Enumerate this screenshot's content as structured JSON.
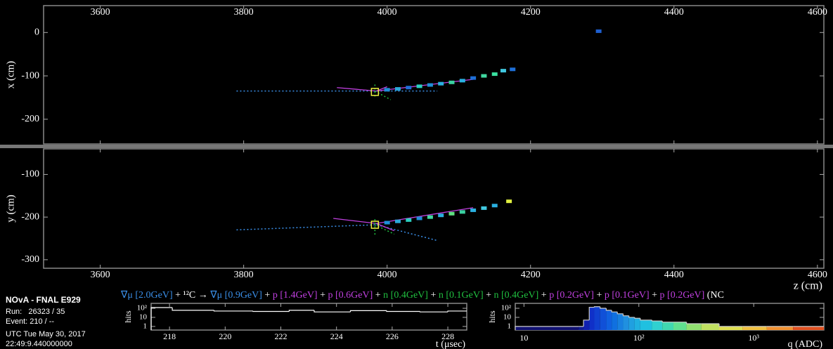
{
  "chart_data": [
    {
      "type": "scatter",
      "ylabel": "x (cm)",
      "xlim": [
        3521,
        4609
      ],
      "xticks": [
        3600,
        3800,
        4000,
        4200,
        4400,
        4600
      ],
      "ylim": [
        -257,
        62
      ],
      "yticks": [
        0,
        -100,
        -200
      ],
      "x": [
        4000,
        4015,
        4030,
        4045,
        4060,
        4075,
        4090,
        4105,
        4120,
        4135,
        4150,
        4162,
        4175,
        4295
      ],
      "values": [
        -132,
        -130,
        -127,
        -124,
        -121,
        -118,
        -115,
        -111,
        -105,
        -100,
        -96,
        -88,
        -85,
        3
      ],
      "colors": [
        "#1e8fd8",
        "#2aa8d8",
        "#1e6fd8",
        "#2ad0c0",
        "#1e8fd8",
        "#2ab0e0",
        "#3ad0a0",
        "#2ab0e0",
        "#1e6fd8",
        "#40d8a0",
        "#3ae0a0",
        "#40c8e0",
        "#1e6fd8",
        "#1e5fd0"
      ],
      "tracks": [
        {
          "color": "#3a8fe8",
          "dash": true,
          "x": [
            3790,
            4070
          ],
          "values": [
            -135,
            -135
          ]
        },
        {
          "color": "#c040e0",
          "dash": false,
          "x": [
            3930,
            3985,
            4120
          ],
          "values": [
            -127,
            -135,
            -108
          ]
        },
        {
          "color": "#c040e0",
          "dash": false,
          "x": [
            3985,
            4000
          ],
          "values": [
            -135,
            -125
          ]
        },
        {
          "color": "#20c040",
          "dash": true,
          "x": [
            3983,
            3983
          ],
          "values": [
            -120,
            -150
          ]
        },
        {
          "color": "#20c040",
          "dash": true,
          "x": [
            3983,
            4005
          ],
          "values": [
            -135,
            -155
          ]
        }
      ],
      "vertex": {
        "x": 3983,
        "y": -137,
        "color": "#f0f040"
      }
    },
    {
      "type": "scatter",
      "ylabel": "y (cm)",
      "xlabel": "z (cm)",
      "xlim": [
        3521,
        4609
      ],
      "xticks": [
        3600,
        3800,
        4000,
        4200,
        4400,
        4600
      ],
      "ylim": [
        -320,
        -40
      ],
      "yticks": [
        -100,
        -200,
        -300
      ],
      "x": [
        4000,
        4015,
        4030,
        4045,
        4060,
        4075,
        4090,
        4105,
        4120,
        4135,
        4150,
        4170
      ],
      "values": [
        -213,
        -210,
        -207,
        -203,
        -200,
        -196,
        -192,
        -188,
        -184,
        -179,
        -173,
        -163
      ],
      "colors": [
        "#1e8fd8",
        "#2aa8d8",
        "#2ad0c0",
        "#1e8fd8",
        "#40d8a0",
        "#2ab0e0",
        "#60e080",
        "#3ad0a0",
        "#2ab0e0",
        "#40c8e0",
        "#2ab0e0",
        "#e0f040"
      ],
      "tracks": [
        {
          "color": "#3a8fe8",
          "dash": true,
          "x": [
            3790,
            3985,
            4070
          ],
          "values": [
            -230,
            -218,
            -255
          ]
        },
        {
          "color": "#c040e0",
          "dash": false,
          "x": [
            3925,
            3985,
            4120
          ],
          "values": [
            -203,
            -215,
            -178
          ]
        },
        {
          "color": "#c040e0",
          "dash": false,
          "x": [
            3985,
            4010
          ],
          "values": [
            -215,
            -232
          ]
        },
        {
          "color": "#20c040",
          "dash": true,
          "x": [
            3983,
            3983
          ],
          "values": [
            -205,
            -245
          ]
        },
        {
          "color": "#20c040",
          "dash": true,
          "x": [
            3983,
            4010
          ],
          "values": [
            -218,
            -240
          ]
        }
      ],
      "vertex": {
        "x": 3983,
        "y": -218,
        "color": "#f0f040"
      }
    },
    {
      "type": "histogram",
      "xlabel": "t (μsec)",
      "ylabel": "hits",
      "log_y": true,
      "xlim": [
        217.34,
        228.68
      ],
      "xticks": [
        218,
        220,
        222,
        224,
        226,
        228
      ],
      "ylim": [
        0.4,
        350
      ],
      "yticks": [
        1,
        10,
        {
          "value": 100,
          "label": "10²"
        }
      ],
      "bins": [
        217.34,
        218.1,
        219.6,
        221.0,
        222.3,
        223.2,
        224.5,
        225.8,
        227.0,
        228.0,
        228.68
      ],
      "values": [
        120,
        60,
        50,
        45,
        60,
        40,
        55,
        45,
        40,
        50
      ],
      "color": "#ffffff"
    },
    {
      "type": "histogram",
      "xlabel": "q (ADC)",
      "ylabel": "hits",
      "log_x": true,
      "log_y": true,
      "xlim": [
        8.4,
        4080
      ],
      "xticks": [
        10,
        {
          "value": 100,
          "label": "10²"
        },
        {
          "value": 1000,
          "label": "10³"
        }
      ],
      "ylim": [
        0.4,
        350
      ],
      "yticks": [
        1,
        10,
        {
          "value": 100,
          "label": "10²"
        }
      ],
      "bins": [
        8.4,
        30,
        33,
        37,
        41,
        46,
        52,
        58,
        65,
        73,
        82,
        92,
        103,
        130,
        160,
        200,
        260,
        350,
        500,
        800,
        1300,
        2200,
        4080
      ],
      "values": [
        1,
        1,
        5,
        130,
        150,
        100,
        60,
        40,
        25,
        15,
        10,
        8,
        5,
        4,
        3,
        3,
        2,
        2,
        1,
        1,
        1,
        1
      ],
      "colors": [
        "#101070",
        "#101a90",
        "#1020b0",
        "#1030c8",
        "#1040d0",
        "#1050d8",
        "#1060e0",
        "#1070e0",
        "#1880e0",
        "#2090e0",
        "#20a0e0",
        "#20b0e0",
        "#20c0e0",
        "#30d0d0",
        "#40d8b0",
        "#60e090",
        "#90e070",
        "#c0e060",
        "#e0e050",
        "#f0c040",
        "#f09030",
        "#e05020"
      ]
    }
  ],
  "event_info": {
    "experiment": "NOvA - FNAL E929",
    "run": "Run:   26323 / 35",
    "event": "Event: 210 / --",
    "date": "UTC Tue May 30, 2017",
    "time": "22:49:9.440000000"
  },
  "interaction": [
    {
      "text": "∇μ [2.0GeV]",
      "color": "#3a8fe8"
    },
    {
      "text": " + ¹²C → ",
      "color": "#ffffff"
    },
    {
      "text": "∇μ [0.9GeV]",
      "color": "#3a8fe8"
    },
    {
      "text": " + ",
      "color": "#ffffff"
    },
    {
      "text": "p [1.4GeV]",
      "color": "#c040e0"
    },
    {
      "text": " + ",
      "color": "#ffffff"
    },
    {
      "text": "p [0.6GeV]",
      "color": "#c040e0"
    },
    {
      "text": " + ",
      "color": "#ffffff"
    },
    {
      "text": "n [0.4GeV]",
      "color": "#20c040"
    },
    {
      "text": " + ",
      "color": "#ffffff"
    },
    {
      "text": "n [0.1GeV]",
      "color": "#20c040"
    },
    {
      "text": " + ",
      "color": "#ffffff"
    },
    {
      "text": "n [0.4GeV]",
      "color": "#20c040"
    },
    {
      "text": " + ",
      "color": "#ffffff"
    },
    {
      "text": "p [0.2GeV]",
      "color": "#c040e0"
    },
    {
      "text": " + ",
      "color": "#ffffff"
    },
    {
      "text": "p [0.1GeV]",
      "color": "#c040e0"
    },
    {
      "text": " + ",
      "color": "#ffffff"
    },
    {
      "text": "p [0.2GeV]",
      "color": "#c040e0"
    },
    {
      "text": " (NC",
      "color": "#ffffff"
    }
  ]
}
